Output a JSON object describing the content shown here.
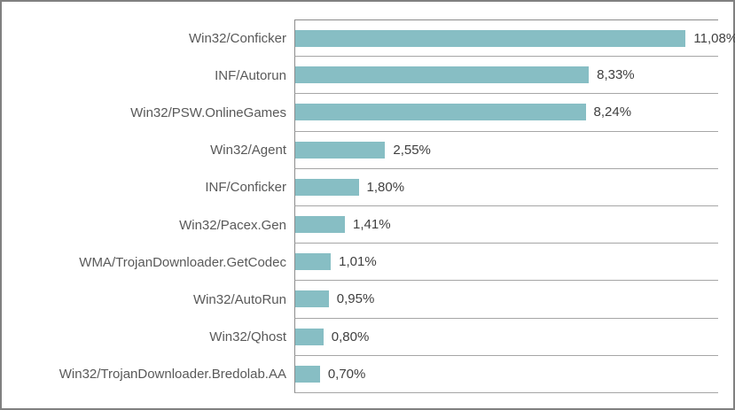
{
  "chart_data": {
    "type": "bar",
    "orientation": "horizontal",
    "title": "",
    "xlabel": "",
    "ylabel": "",
    "xlim": [
      0,
      12
    ],
    "grid": "horizontal category separators",
    "legend": "none",
    "categories": [
      "Win32/Conficker",
      "INF/Autorun",
      "Win32/PSW.OnlineGames",
      "Win32/Agent",
      "INF/Conficker",
      "Win32/Pacex.Gen",
      "WMA/TrojanDownloader.GetCodec",
      "Win32/AutoRun",
      "Win32/Qhost",
      "Win32/TrojanDownloader.Bredolab.AA"
    ],
    "values": [
      11.08,
      8.33,
      8.24,
      2.55,
      1.8,
      1.41,
      1.01,
      0.95,
      0.8,
      0.7
    ],
    "value_labels": [
      "11,08%",
      "8,33%",
      "8,24%",
      "2,55%",
      "1,80%",
      "1,41%",
      "1,01%",
      "0,95%",
      "0,80%",
      "0,70%"
    ],
    "colors": {
      "bar": "#87bec4",
      "gridline": "#a6a6a6",
      "axis_line": "#8c8c8c",
      "category_label": "#595959",
      "value_label": "#3f3f3f",
      "outer_frame": "#808080",
      "background": "#ffffff"
    }
  }
}
